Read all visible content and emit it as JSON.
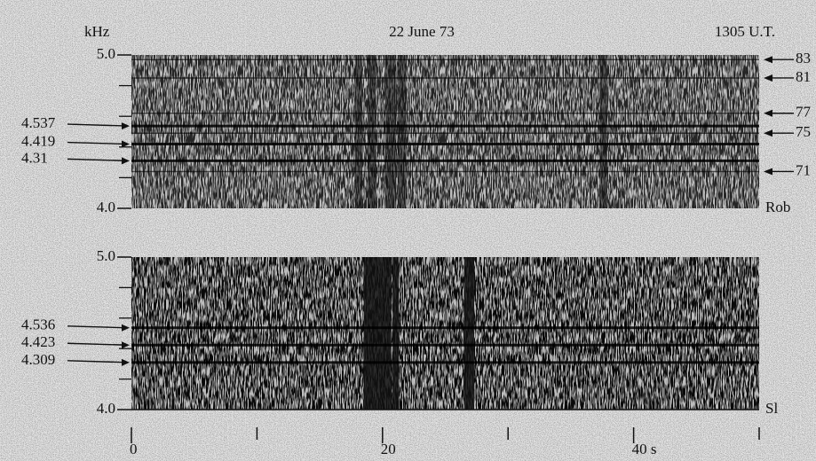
{
  "header": {
    "unit": "kHz",
    "date": "22 June 73",
    "time": "1305 U.T."
  },
  "chart_data": [
    {
      "type": "spectrogram",
      "station": "Rob",
      "xlim": [
        0,
        50
      ],
      "ylim": [
        4,
        5
      ],
      "yticks": [
        {
          "value": 4,
          "label": "4.0"
        },
        {
          "value": 5,
          "label": "5.0"
        }
      ],
      "yminor_ticks": [
        4.2,
        4.4,
        4.6,
        4.8
      ],
      "marked_lines": [
        4.537,
        4.419,
        4.31
      ],
      "harmonics": [
        {
          "number": 83,
          "freq": 4.97
        },
        {
          "number": 81,
          "freq": 4.85
        },
        {
          "number": 77,
          "freq": 4.62
        },
        {
          "number": 75,
          "freq": 4.49
        },
        {
          "number": 71,
          "freq": 4.24
        }
      ]
    },
    {
      "type": "spectrogram",
      "station": "Sl",
      "xlim": [
        0,
        50
      ],
      "ylim": [
        4,
        5
      ],
      "yticks": [
        {
          "value": 4,
          "label": "4.0"
        },
        {
          "value": 5,
          "label": "5.0"
        }
      ],
      "yminor_ticks": [
        4.2,
        4.4,
        4.6,
        4.8
      ],
      "marked_lines": [
        4.536,
        4.423,
        4.309
      ],
      "xticks": [
        0,
        20,
        {
          "value": 40,
          "label": "40 s"
        }
      ],
      "xminor_ticks": [
        10,
        30,
        50
      ]
    }
  ]
}
